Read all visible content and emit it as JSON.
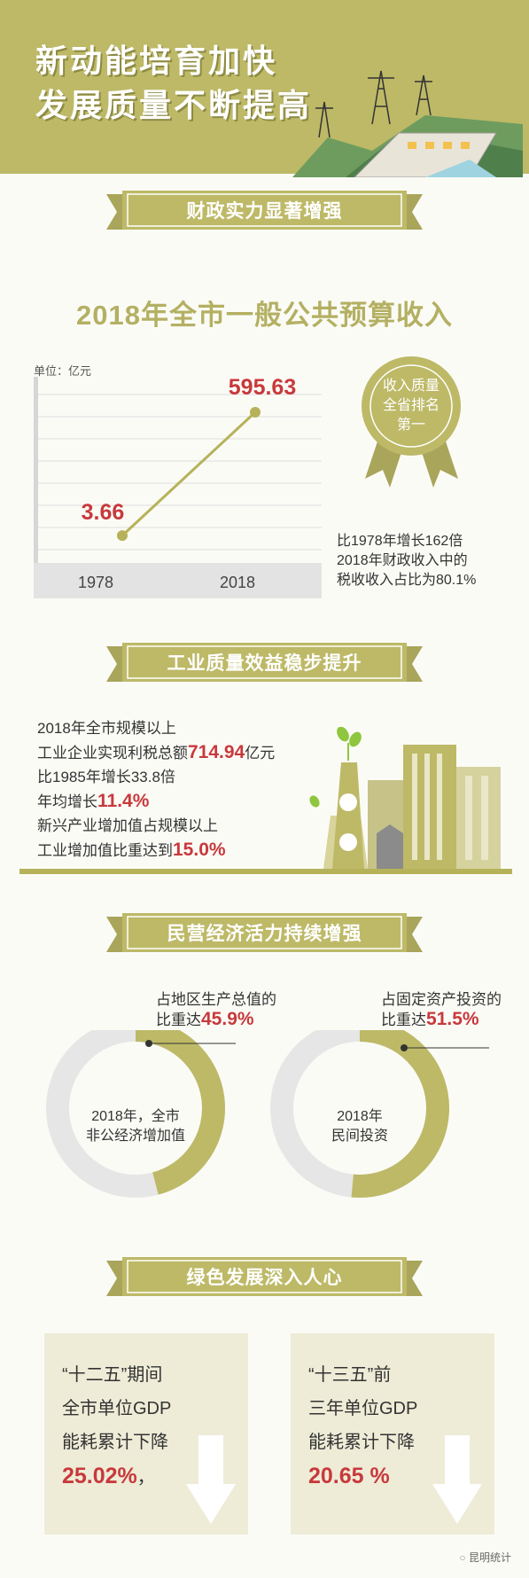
{
  "header": {
    "title_line1": "新动能培育加快",
    "title_line2": "发展质量不断提高"
  },
  "colors": {
    "accent": "#b6b25a",
    "highlight": "#c8393c",
    "background": "#fbfbf6",
    "card": "#eeecd7"
  },
  "section1": {
    "banner": "财政实力显著增强",
    "title": "2018年全市一般公共预算收入",
    "unit": "单位：亿元",
    "badge": [
      "收入质量",
      "全省排名",
      "第一"
    ],
    "note": [
      "比1978年增长162倍",
      "2018年财政收入中的",
      "税收收入占比为80.1%"
    ]
  },
  "chart_data": {
    "type": "line",
    "categories": [
      "1978",
      "2018"
    ],
    "values": [
      3.66,
      595.63
    ],
    "value_labels": [
      "3.66",
      "595.63"
    ],
    "title": "2018年全市一般公共预算收入",
    "ylabel": "单位：亿元"
  },
  "section2": {
    "banner": "工业质量效益稳步提升",
    "line1": "2018年全市规模以上",
    "line2_pre": "工业企业实现利税总额",
    "line2_val": "714.94",
    "line2_post": "亿元",
    "line3": "比1985年增长33.8倍",
    "line4_pre": "年均增长",
    "line4_val": "11.4%",
    "line5": "新兴产业增加值占规模以上",
    "line6_pre": "工业增加值比重达到",
    "line6_val": "15.0%"
  },
  "section3": {
    "banner": "民营经济活力持续增强",
    "donut1": {
      "caption_line1": "占地区生产总值的",
      "caption_pre": "比重达",
      "caption_val": "45.9%",
      "percent": 45.9,
      "center_line1": "2018年，全市",
      "center_line2": "非公经济增加值"
    },
    "donut2": {
      "caption_line1": "占固定资产投资的",
      "caption_pre": "比重达",
      "caption_val": "51.5%",
      "percent": 51.5,
      "center_line1": "2018年",
      "center_line2": "民间投资"
    }
  },
  "section4": {
    "banner": "绿色发展深入人心",
    "card1": {
      "line1": "“十二五”期间",
      "line2": "全市单位GDP",
      "line3": "能耗累计下降",
      "value": "25.02%",
      "suffix": "，"
    },
    "card2": {
      "line1": "“十三五”前",
      "line2": "三年单位GDP",
      "line3": "能耗累计下降",
      "value": "20.65 %",
      "suffix": ""
    }
  },
  "footer": {
    "brand": "昆明统计"
  }
}
